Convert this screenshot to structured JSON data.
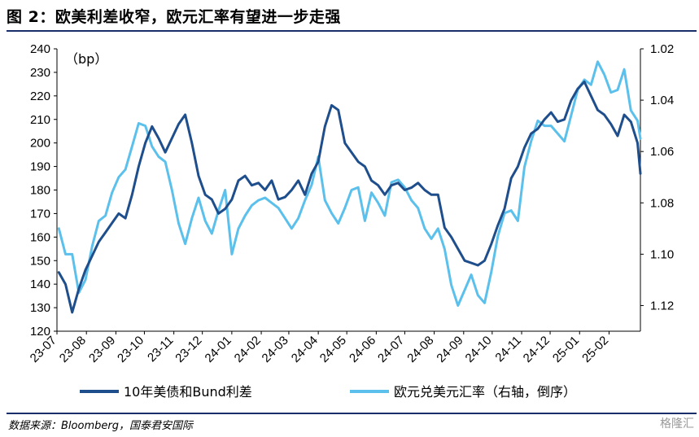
{
  "figure": {
    "title": "图 2：欧美利差收窄，欧元汇率有望进一步走强",
    "source": "数据来源：Bloomberg，国泰君安国际",
    "watermark": "格隆汇"
  },
  "colors": {
    "spread_line": "#1f4e8c",
    "eurusd_line": "#5bc0eb",
    "axis": "#000000",
    "header_rule": "#1a2f6a"
  },
  "chart_data": {
    "type": "line",
    "unit_label": "（bp）",
    "x": [
      "2023-07-03",
      "2023-07-10",
      "2023-07-17",
      "2023-07-24",
      "2023-07-31",
      "2023-08-07",
      "2023-08-14",
      "2023-08-21",
      "2023-08-28",
      "2023-09-04",
      "2023-09-11",
      "2023-09-18",
      "2023-09-25",
      "2023-10-02",
      "2023-10-09",
      "2023-10-16",
      "2023-10-23",
      "2023-10-30",
      "2023-11-06",
      "2023-11-13",
      "2023-11-20",
      "2023-11-27",
      "2023-12-04",
      "2023-12-11",
      "2023-12-18",
      "2023-12-25",
      "2024-01-01",
      "2024-01-08",
      "2024-01-15",
      "2024-01-22",
      "2024-01-29",
      "2024-02-05",
      "2024-02-12",
      "2024-02-19",
      "2024-02-26",
      "2024-03-04",
      "2024-03-11",
      "2024-03-18",
      "2024-03-25",
      "2024-04-01",
      "2024-04-08",
      "2024-04-15",
      "2024-04-22",
      "2024-04-29",
      "2024-05-06",
      "2024-05-13",
      "2024-05-20",
      "2024-05-27",
      "2024-06-03",
      "2024-06-10",
      "2024-06-17",
      "2024-06-24",
      "2024-07-01",
      "2024-07-08",
      "2024-07-15",
      "2024-07-22",
      "2024-07-29",
      "2024-08-05",
      "2024-08-12",
      "2024-08-19",
      "2024-08-26",
      "2024-09-02",
      "2024-09-09",
      "2024-09-16",
      "2024-09-23",
      "2024-09-30",
      "2024-10-07",
      "2024-10-14",
      "2024-10-21",
      "2024-10-28",
      "2024-11-04",
      "2024-11-11",
      "2024-11-18",
      "2024-11-25",
      "2024-12-02",
      "2024-12-09",
      "2024-12-16",
      "2024-12-23",
      "2024-12-30",
      "2025-01-06",
      "2025-01-13",
      "2025-01-20",
      "2025-01-27",
      "2025-02-03",
      "2025-02-10",
      "2025-02-17",
      "2025-02-24",
      "2025-03-03",
      "2025-03-06"
    ],
    "x_tick_labels": [
      "23-07",
      "23-08",
      "23-09",
      "23-10",
      "23-11",
      "23-12",
      "24-01",
      "24-02",
      "24-03",
      "24-04",
      "24-05",
      "24-06",
      "24-07",
      "24-08",
      "24-09",
      "24-10",
      "24-11",
      "24-12",
      "25-01",
      "25-02"
    ],
    "y_left": {
      "range": [
        120,
        240
      ],
      "ticks": [
        120,
        130,
        140,
        150,
        160,
        170,
        180,
        190,
        200,
        210,
        220,
        230,
        240
      ]
    },
    "y_right": {
      "range": [
        1.02,
        1.13
      ],
      "inverted": true,
      "ticks": [
        "1.02",
        "1.04",
        "1.06",
        "1.08",
        "1.10",
        "1.12"
      ]
    },
    "series": [
      {
        "name": "10年美债和Bund利差",
        "axis": "left",
        "values": [
          145,
          140,
          128,
          138,
          146,
          152,
          158,
          162,
          166,
          170,
          168,
          178,
          190,
          200,
          207,
          202,
          196,
          202,
          208,
          212,
          200,
          186,
          178,
          176,
          170,
          172,
          176,
          184,
          186,
          182,
          183,
          180,
          184,
          176,
          177,
          180,
          184,
          178,
          187,
          192,
          207,
          216,
          214,
          200,
          196,
          192,
          190,
          184,
          182,
          178,
          182,
          183,
          180,
          181,
          183,
          180,
          178,
          178,
          164,
          160,
          155,
          150,
          149,
          148,
          150,
          157,
          165,
          172,
          185,
          190,
          198,
          204,
          206,
          210,
          213,
          209,
          210,
          218,
          223,
          226,
          220,
          214,
          212,
          208,
          203,
          212,
          209,
          200,
          187
        ]
      },
      {
        "name": "欧元兑美元汇率（右轴，倒序）",
        "axis": "right",
        "values": [
          1.09,
          1.1,
          1.1,
          1.115,
          1.11,
          1.097,
          1.087,
          1.085,
          1.076,
          1.07,
          1.067,
          1.058,
          1.049,
          1.05,
          1.058,
          1.062,
          1.064,
          1.075,
          1.088,
          1.096,
          1.086,
          1.078,
          1.087,
          1.092,
          1.083,
          1.075,
          1.1,
          1.09,
          1.085,
          1.081,
          1.079,
          1.078,
          1.08,
          1.082,
          1.086,
          1.09,
          1.086,
          1.079,
          1.073,
          1.062,
          1.079,
          1.084,
          1.088,
          1.082,
          1.075,
          1.074,
          1.087,
          1.076,
          1.08,
          1.085,
          1.072,
          1.071,
          1.074,
          1.079,
          1.082,
          1.09,
          1.094,
          1.09,
          1.098,
          1.112,
          1.12,
          1.114,
          1.108,
          1.116,
          1.119,
          1.107,
          1.093,
          1.084,
          1.083,
          1.087,
          1.066,
          1.056,
          1.048,
          1.05,
          1.05,
          1.053,
          1.056,
          1.046,
          1.036,
          1.032,
          1.034,
          1.025,
          1.03,
          1.037,
          1.036,
          1.028,
          1.044,
          1.048,
          1.055
        ]
      }
    ]
  }
}
